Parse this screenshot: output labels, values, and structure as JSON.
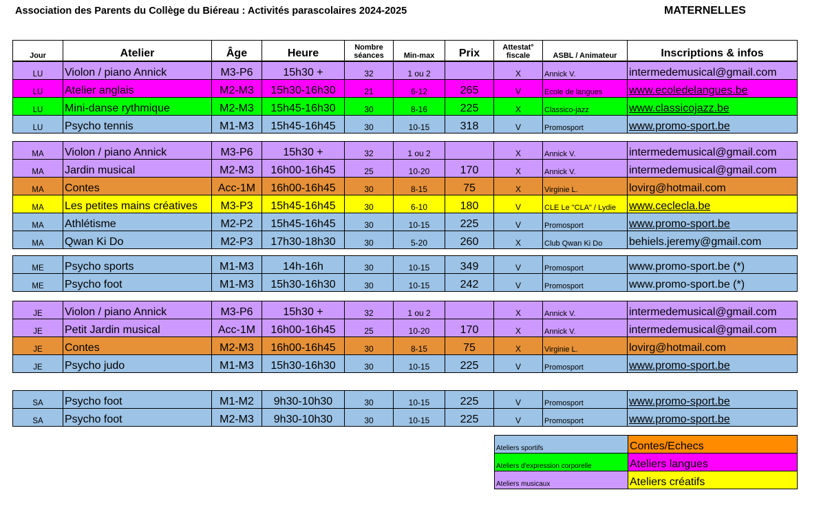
{
  "header": {
    "title": "Association des Parents du Collège du Biéreau : Activités parascolaires 2024-2025",
    "section": "MATERNELLES"
  },
  "columns": {
    "jour": "Jour",
    "atelier": "Atelier",
    "age": "Âge",
    "heure": "Heure",
    "nombre_1": "Nombre",
    "nombre_2": "séances",
    "minmax": "Min-max",
    "prix": "Prix",
    "attest_1": "Attestat°",
    "attest_2": "fiscale",
    "asbl": "ASBL / Animateur",
    "infos": "Inscriptions & infos"
  },
  "colors": {
    "sport": "#9dc3e6",
    "music": "#cc99ff",
    "lang": "#ff00ff",
    "dance": "#00ff00",
    "tales": "#e69138",
    "creative": "#ffff00"
  },
  "groups": [
    {
      "rows": [
        {
          "jour": "LU",
          "atelier": "Violon / piano Annick",
          "age": "M3-P6",
          "heure": "15h30 +",
          "nb": "32",
          "minmax": "1 ou 2",
          "prix": "",
          "att": "X",
          "asbl": "Annick V.",
          "info": "intermedemusical@gmail.com",
          "color": "#cc99ff",
          "link": false
        },
        {
          "jour": "LU",
          "atelier": "Atelier anglais",
          "age": "M2-M3",
          "heure": "15h30-16h30",
          "nb": "21",
          "minmax": "6-12",
          "prix": "265",
          "att": "V",
          "asbl": "Ecole de langues",
          "info": "www.ecoledelangues.be",
          "color": "#ff00ff",
          "link": true
        },
        {
          "jour": "LU",
          "atelier": "Mini-danse rythmique",
          "age": "M2-M3",
          "heure": "15h45-16h30",
          "nb": "30",
          "minmax": "8-16",
          "prix": "225",
          "att": "X",
          "asbl": "Classico-jazz",
          "info": "www.classicojazz.be",
          "color": "#00ff00",
          "link": true
        },
        {
          "jour": "LU",
          "atelier": "Psycho tennis",
          "age": "M1-M3",
          "heure": "15h45-16h45",
          "nb": "30",
          "minmax": "10-15",
          "prix": "318",
          "att": "V",
          "asbl": "Promosport",
          "info": "www.promo-sport.be ",
          "color": "#9dc3e6",
          "link": true
        }
      ]
    },
    {
      "rows": [
        {
          "jour": "MA",
          "atelier": "Violon / piano Annick",
          "age": "M3-P6",
          "heure": "15h30 +",
          "nb": "32",
          "minmax": "1 ou 2",
          "prix": "",
          "att": "X",
          "asbl": "Annick V.",
          "info": "intermedemusical@gmail.com",
          "color": "#cc99ff",
          "link": false
        },
        {
          "jour": "MA",
          "atelier": "Jardin musical",
          "age": "M2-M3",
          "heure": "16h00-16h45",
          "nb": "25",
          "minmax": "10-20",
          "prix": "170",
          "att": "X",
          "asbl": "Annick V.",
          "info": "intermedemusical@gmail.com",
          "color": "#cc99ff",
          "link": false
        },
        {
          "jour": "MA",
          "atelier": "Contes",
          "age": "Acc-1M",
          "heure": "16h00-16h45",
          "nb": "30",
          "minmax": "8-15",
          "prix": "75",
          "att": "X",
          "asbl": "Virginie L.",
          "info": "lovirg@hotmail.com",
          "color": "#e69138",
          "link": false
        },
        {
          "jour": "MA",
          "atelier": "Les petites mains créatives",
          "age": "M3-P3",
          "heure": "15h45-16h45",
          "nb": "30",
          "minmax": "6-10",
          "prix": "180",
          "att": "V",
          "asbl": "CLE Le \"CLA\" / Lydie",
          "info": "www.ceclecla.be",
          "color": "#ffff00",
          "link": true
        },
        {
          "jour": "MA",
          "atelier": "Athlétisme",
          "age": "M2-P2",
          "heure": "15h45-16h45",
          "nb": "30",
          "minmax": "10-15",
          "prix": "225",
          "att": "V",
          "asbl": "Promosport",
          "info": "www.promo-sport.be",
          "color": "#9dc3e6",
          "link": true
        },
        {
          "jour": "MA",
          "atelier": "Qwan Ki Do",
          "age": "M2-P3",
          "heure": "17h30-18h30",
          "nb": "30",
          "minmax": "5-20",
          "prix": "260",
          "att": "X",
          "asbl": "Club Qwan Ki Do",
          "info": "behiels.jeremy@gmail.com",
          "color": "#9dc3e6",
          "link": false
        }
      ]
    },
    {
      "rows": [
        {
          "jour": "ME",
          "atelier": "Psycho sports",
          "age": "M1-M3",
          "heure": "14h-16h",
          "nb": "30",
          "minmax": "10-15",
          "prix": "349",
          "att": "V",
          "asbl": "Promosport",
          "info": "www.promo-sport.be (*)",
          "color": "#9dc3e6",
          "link": false
        },
        {
          "jour": "ME",
          "atelier": "Psycho foot",
          "age": "M1-M3",
          "heure": "15h30-16h30",
          "nb": "30",
          "minmax": "10-15",
          "prix": "242",
          "att": "V",
          "asbl": "Promosport",
          "info": "www.promo-sport.be (*)",
          "color": "#9dc3e6",
          "link": false
        }
      ]
    },
    {
      "rows": [
        {
          "jour": "JE",
          "atelier": "Violon / piano Annick",
          "age": "M3-P6",
          "heure": "15h30 +",
          "nb": "32",
          "minmax": "1 ou 2",
          "prix": "",
          "att": "X",
          "asbl": "Annick V.",
          "info": "intermedemusical@gmail.com",
          "color": "#cc99ff",
          "link": false
        },
        {
          "jour": "JE",
          "atelier": "Petit Jardin musical",
          "age": "Acc-1M",
          "heure": "16h00-16h45",
          "nb": "25",
          "minmax": "10-20",
          "prix": "170",
          "att": "X",
          "asbl": "Annick V.",
          "info": "intermedemusical@gmail.com",
          "color": "#cc99ff",
          "link": false
        },
        {
          "jour": "JE",
          "atelier": "Contes",
          "age": "M2-M3",
          "heure": "16h00-16h45",
          "nb": "30",
          "minmax": "8-15",
          "prix": "75",
          "att": "X",
          "asbl": "Virginie L.",
          "info": "lovirg@hotmail.com",
          "color": "#e69138",
          "link": false
        },
        {
          "jour": "JE",
          "atelier": "Psycho judo",
          "age": "M1-M3",
          "heure": "15h30-16h30",
          "nb": "30",
          "minmax": "10-15",
          "prix": "225",
          "att": "V",
          "asbl": "Promosport",
          "info": "www.promo-sport.be ",
          "color": "#9dc3e6",
          "link": true
        }
      ]
    },
    {
      "rows": [
        {
          "jour": "SA",
          "atelier": "Psycho foot",
          "age": "M1-M2",
          "heure": "9h30-10h30",
          "nb": "30",
          "minmax": "10-15",
          "prix": "225",
          "att": "V",
          "asbl": "Promosport",
          "info": "www.promo-sport.be ",
          "color": "#9dc3e6",
          "link": true
        },
        {
          "jour": "SA",
          "atelier": "Psycho foot",
          "age": "M2-M3",
          "heure": "9h30-10h30",
          "nb": "30",
          "minmax": "10-15",
          "prix": "225",
          "att": "V",
          "asbl": "Promosport",
          "info": "www.promo-sport.be ",
          "color": "#9dc3e6",
          "link": true
        }
      ]
    }
  ],
  "legend": [
    {
      "left": "Ateliers sportifs",
      "left_color": "#9dc3e6",
      "right": "Contes/Echecs",
      "right_color": "#ff8c00"
    },
    {
      "left": "Ateliers d'expression corporelle",
      "left_color": "#00ff00",
      "right": "Ateliers langues",
      "right_color": "#ff00ff"
    },
    {
      "left": "Ateliers musicaux",
      "left_color": "#cc99ff",
      "right": "Ateliers créatifs",
      "right_color": "#ffff00"
    }
  ]
}
